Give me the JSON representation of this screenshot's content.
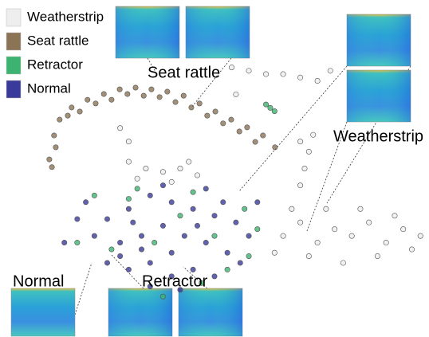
{
  "chart_data": {
    "type": "scatter",
    "xlim": [
      0,
      100
    ],
    "ylim": [
      0,
      100
    ],
    "annotations": [
      "Seat rattle",
      "Weatherstrip",
      "Normal",
      "Retractor"
    ],
    "series": [
      {
        "name": "Weatherstrip",
        "color": "#eeeeee",
        "x": [
          66,
          70,
          74,
          78,
          82,
          86,
          90,
          94,
          72,
          80,
          88,
          96,
          68,
          76,
          84,
          92,
          64,
          98,
          70,
          71,
          72,
          73,
          70,
          54,
          58,
          62,
          66,
          70,
          74,
          77,
          30,
          34,
          38,
          42,
          46,
          32,
          40,
          44,
          28,
          30,
          55
        ],
        "values": [
          30,
          34,
          28,
          32,
          30,
          34,
          28,
          32,
          24,
          22,
          24,
          26,
          38,
          38,
          38,
          36,
          25,
          30,
          45,
          50,
          55,
          60,
          58,
          80,
          79,
          78,
          78,
          77,
          76,
          79,
          52,
          50,
          49,
          50,
          48,
          47,
          46,
          52,
          62,
          58,
          72
        ]
      },
      {
        "name": "Seat rattle",
        "color": "#8b7355",
        "x": [
          11.5,
          12.6,
          13.9,
          16.7,
          20.4,
          24.2,
          27.9,
          31.6,
          35.3,
          39.0,
          42.8,
          46.5,
          50.2,
          53.9,
          57.6,
          61.3,
          64.1,
          13.0,
          15.8,
          18.6,
          22.3,
          26.0,
          29.7,
          33.5,
          37.2,
          40.9,
          44.6,
          48.3,
          52.0,
          55.8,
          59.5,
          12.1
        ],
        "values": [
          52.7,
          59.8,
          64.5,
          68.1,
          70.4,
          72.1,
          73.5,
          74.0,
          73.5,
          72.8,
          71.6,
          69.3,
          66.9,
          64.5,
          62.2,
          59.8,
          56.3,
          56.3,
          65.7,
          66.9,
          69.3,
          70.4,
          72.1,
          71.6,
          71.2,
          69.7,
          68.1,
          65.7,
          63.4,
          61.0,
          57.9,
          50.4
        ]
      },
      {
        "name": "Retractor",
        "color": "#3cb371",
        "x": [
          63,
          64,
          62,
          22,
          32,
          45,
          57,
          60,
          53,
          38,
          26,
          18,
          42,
          50,
          36,
          47,
          58,
          30
        ],
        "values": [
          68,
          67,
          69,
          42,
          44,
          43,
          38,
          32,
          20,
          12,
          26,
          28,
          36,
          30,
          28,
          16,
          24,
          41
        ]
      },
      {
        "name": "Normal",
        "color": "#3a3a9a",
        "x": [
          20,
          25,
          30,
          35,
          40,
          45,
          50,
          55,
          58,
          22,
          28,
          33,
          38,
          43,
          48,
          53,
          56,
          25,
          30,
          35,
          40,
          45,
          50,
          35,
          42,
          18,
          15,
          60,
          48,
          38,
          28,
          46,
          31,
          52,
          40,
          33
        ],
        "values": [
          40,
          35,
          38,
          42,
          40,
          38,
          36,
          34,
          30,
          30,
          28,
          30,
          33,
          30,
          28,
          25,
          22,
          22,
          20,
          22,
          25,
          20,
          18,
          15,
          14,
          35,
          28,
          40,
          44,
          45,
          24,
          33,
          34,
          40,
          18,
          26
        ]
      }
    ]
  }
}
